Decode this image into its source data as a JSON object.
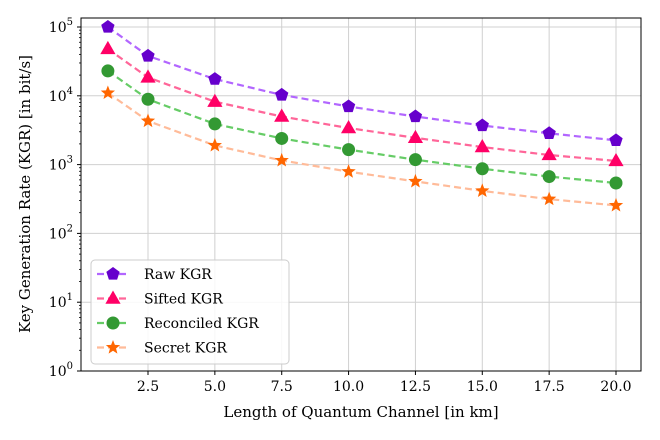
{
  "chart_data": {
    "type": "line",
    "title": "",
    "xlabel": "Length of Quantum Channel [in km]",
    "ylabel": "Key Generation Rate (KGR) [in bit/s]",
    "yscale": "log",
    "ylim": [
      1,
      100000
    ],
    "xlim": [
      0.1,
      20.9
    ],
    "grid": true,
    "legend_position": "lower-left",
    "x": [
      1,
      2.5,
      5,
      7.5,
      10,
      12.5,
      15,
      17.5,
      20
    ],
    "x_ticks": [
      "2.5",
      "5.0",
      "7.5",
      "10.0",
      "12.5",
      "15.0",
      "17.5",
      "20.0"
    ],
    "x_tick_values": [
      2.5,
      5,
      7.5,
      10,
      12.5,
      15,
      17.5,
      20
    ],
    "y_ticks": [
      {
        "base": "10",
        "exp": "0",
        "value": 1
      },
      {
        "base": "10",
        "exp": "1",
        "value": 10
      },
      {
        "base": "10",
        "exp": "2",
        "value": 100
      },
      {
        "base": "10",
        "exp": "3",
        "value": 1000
      },
      {
        "base": "10",
        "exp": "4",
        "value": 10000
      },
      {
        "base": "10",
        "exp": "5",
        "value": 100000
      }
    ],
    "series": [
      {
        "name": "Raw KGR",
        "marker": "pentagon",
        "line_color": "#b266ff",
        "marker_color": "#6600cc",
        "values": [
          100000,
          38000,
          17500,
          10300,
          7000,
          5000,
          3700,
          2850,
          2250
        ]
      },
      {
        "name": "Sifted KGR",
        "marker": "triangle",
        "line_color": "#ff6699",
        "marker_color": "#ff0066",
        "values": [
          48000,
          18500,
          8200,
          5000,
          3400,
          2450,
          1800,
          1380,
          1130
        ]
      },
      {
        "name": "Reconciled KGR",
        "marker": "circle",
        "line_color": "#66cc66",
        "marker_color": "#339933",
        "values": [
          23000,
          8900,
          3900,
          2400,
          1650,
          1180,
          870,
          670,
          540
        ]
      },
      {
        "name": "Secret KGR",
        "marker": "star",
        "line_color": "#ffbb99",
        "marker_color": "#ff6600",
        "values": [
          11000,
          4300,
          1900,
          1150,
          790,
          570,
          415,
          315,
          255
        ]
      }
    ]
  }
}
